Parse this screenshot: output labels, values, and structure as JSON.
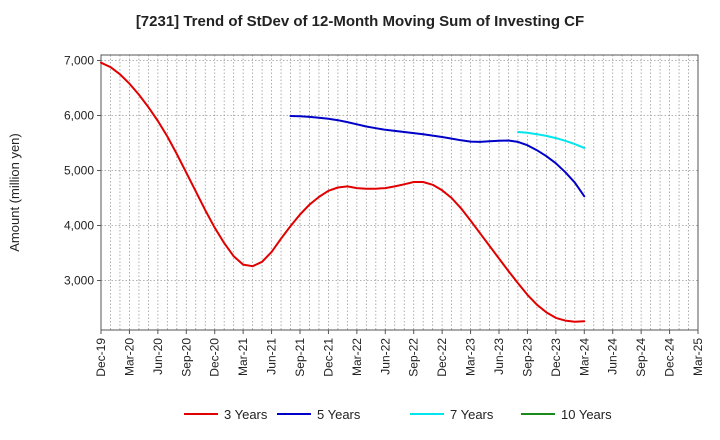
{
  "chart_data": {
    "type": "line",
    "title": "[7231]  Trend of StDev of 12-Month Moving Sum of Investing CF",
    "ylabel": "Amount (million yen)",
    "xlabel": "",
    "ylim": [
      2100,
      7100
    ],
    "yticks": [
      3000,
      4000,
      5000,
      6000,
      7000
    ],
    "ytick_labels": [
      "3,000",
      "4,000",
      "5,000",
      "6,000",
      "7,000"
    ],
    "x_start": "Dec-19",
    "x_end": "Mar-25",
    "xtick_labels": [
      "Dec-19",
      "Mar-20",
      "Jun-20",
      "Sep-20",
      "Dec-20",
      "Mar-21",
      "Jun-21",
      "Sep-21",
      "Dec-21",
      "Mar-22",
      "Jun-22",
      "Sep-22",
      "Dec-22",
      "Mar-23",
      "Jun-23",
      "Sep-23",
      "Dec-23",
      "Mar-24",
      "Jun-24",
      "Sep-24",
      "Dec-24",
      "Mar-25"
    ],
    "grid": true,
    "legend_position": "bottom",
    "series": [
      {
        "name": "3 Years",
        "color": "#e00000",
        "points": [
          [
            "Dec-19",
            6960
          ],
          [
            "Jan-20",
            6880
          ],
          [
            "Feb-20",
            6750
          ],
          [
            "Mar-20",
            6580
          ],
          [
            "Apr-20",
            6380
          ],
          [
            "May-20",
            6150
          ],
          [
            "Jun-20",
            5900
          ],
          [
            "Jul-20",
            5620
          ],
          [
            "Aug-20",
            5300
          ],
          [
            "Sep-20",
            4960
          ],
          [
            "Oct-20",
            4620
          ],
          [
            "Nov-20",
            4280
          ],
          [
            "Dec-20",
            3960
          ],
          [
            "Jan-21",
            3680
          ],
          [
            "Feb-21",
            3440
          ],
          [
            "Mar-21",
            3290
          ],
          [
            "Apr-21",
            3260
          ],
          [
            "May-21",
            3340
          ],
          [
            "Jun-21",
            3520
          ],
          [
            "Jul-21",
            3760
          ],
          [
            "Aug-21",
            3990
          ],
          [
            "Sep-21",
            4200
          ],
          [
            "Oct-21",
            4380
          ],
          [
            "Nov-21",
            4520
          ],
          [
            "Dec-21",
            4630
          ],
          [
            "Jan-22",
            4690
          ],
          [
            "Feb-22",
            4710
          ],
          [
            "Mar-22",
            4680
          ],
          [
            "Apr-22",
            4670
          ],
          [
            "May-22",
            4670
          ],
          [
            "Jun-22",
            4680
          ],
          [
            "Jul-22",
            4710
          ],
          [
            "Aug-22",
            4750
          ],
          [
            "Sep-22",
            4790
          ],
          [
            "Oct-22",
            4790
          ],
          [
            "Nov-22",
            4740
          ],
          [
            "Dec-22",
            4640
          ],
          [
            "Jan-23",
            4500
          ],
          [
            "Feb-23",
            4310
          ],
          [
            "Mar-23",
            4090
          ],
          [
            "Apr-23",
            3860
          ],
          [
            "May-23",
            3630
          ],
          [
            "Jun-23",
            3400
          ],
          [
            "Jul-23",
            3170
          ],
          [
            "Aug-23",
            2950
          ],
          [
            "Sep-23",
            2740
          ],
          [
            "Oct-23",
            2560
          ],
          [
            "Nov-23",
            2420
          ],
          [
            "Dec-23",
            2320
          ],
          [
            "Jan-24",
            2270
          ],
          [
            "Feb-24",
            2250
          ],
          [
            "Mar-24",
            2260
          ]
        ]
      },
      {
        "name": "5 Years",
        "color": "#0000c8",
        "points": [
          [
            "Aug-21",
            5990
          ],
          [
            "Sep-21",
            5985
          ],
          [
            "Oct-21",
            5975
          ],
          [
            "Nov-21",
            5960
          ],
          [
            "Dec-21",
            5940
          ],
          [
            "Jan-22",
            5915
          ],
          [
            "Feb-22",
            5880
          ],
          [
            "Mar-22",
            5840
          ],
          [
            "Apr-22",
            5800
          ],
          [
            "May-22",
            5770
          ],
          [
            "Jun-22",
            5740
          ],
          [
            "Jul-22",
            5720
          ],
          [
            "Aug-22",
            5700
          ],
          [
            "Sep-22",
            5680
          ],
          [
            "Oct-22",
            5660
          ],
          [
            "Nov-22",
            5635
          ],
          [
            "Dec-22",
            5610
          ],
          [
            "Jan-23",
            5580
          ],
          [
            "Feb-23",
            5550
          ],
          [
            "Mar-23",
            5525
          ],
          [
            "Apr-23",
            5520
          ],
          [
            "May-23",
            5530
          ],
          [
            "Jun-23",
            5540
          ],
          [
            "Jul-23",
            5545
          ],
          [
            "Aug-23",
            5520
          ],
          [
            "Sep-23",
            5460
          ],
          [
            "Oct-23",
            5370
          ],
          [
            "Nov-23",
            5260
          ],
          [
            "Dec-23",
            5130
          ],
          [
            "Jan-24",
            4970
          ],
          [
            "Feb-24",
            4780
          ],
          [
            "Mar-24",
            4530
          ]
        ]
      },
      {
        "name": "7 Years",
        "color": "#00e5ee",
        "points": [
          [
            "Aug-23",
            5700
          ],
          [
            "Sep-23",
            5685
          ],
          [
            "Oct-23",
            5660
          ],
          [
            "Nov-23",
            5630
          ],
          [
            "Dec-23",
            5590
          ],
          [
            "Jan-24",
            5540
          ],
          [
            "Feb-24",
            5480
          ],
          [
            "Mar-24",
            5410
          ]
        ]
      },
      {
        "name": "10 Years",
        "color": "#1a8a1a",
        "points": []
      }
    ]
  }
}
